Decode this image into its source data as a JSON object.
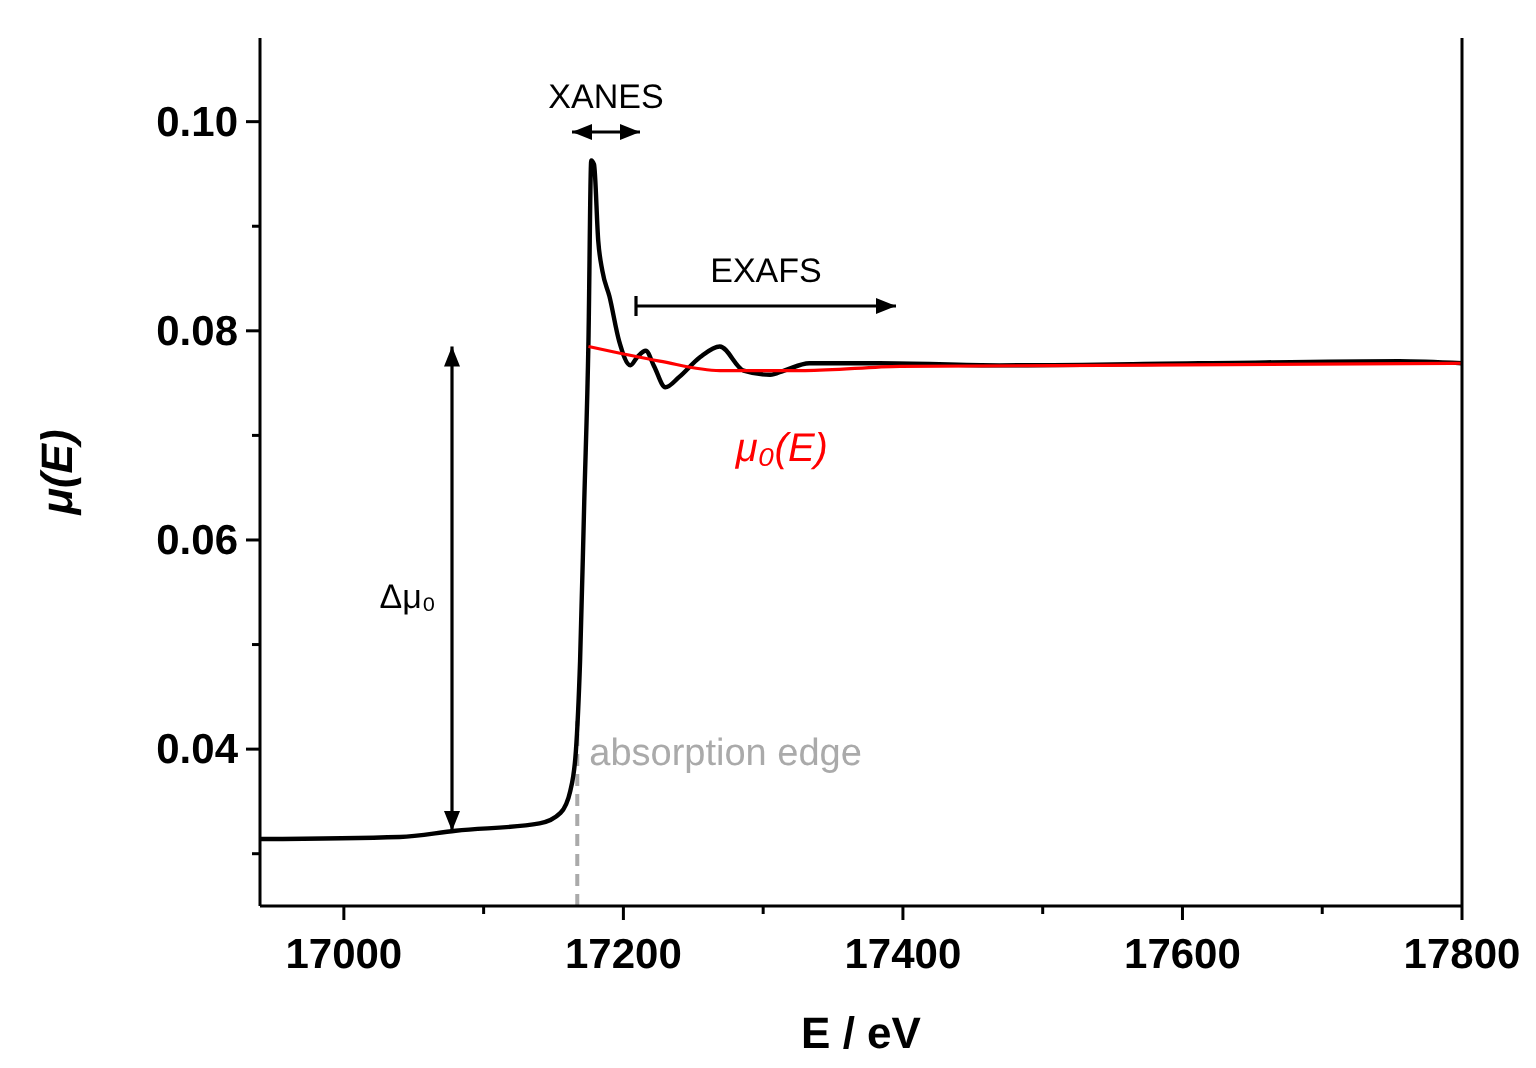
{
  "chart_data": {
    "type": "line",
    "xlabel": "E / eV",
    "ylabel": "μ(E)",
    "xlim": [
      16940,
      17800
    ],
    "ylim": [
      0.025,
      0.108
    ],
    "xticks": [
      {
        "value": 17000,
        "label": "17000"
      },
      {
        "value": 17100,
        "label": null
      },
      {
        "value": 17200,
        "label": "17200"
      },
      {
        "value": 17300,
        "label": null
      },
      {
        "value": 17400,
        "label": "17400"
      },
      {
        "value": 17500,
        "label": null
      },
      {
        "value": 17600,
        "label": "17600"
      },
      {
        "value": 17700,
        "label": null
      },
      {
        "value": 17800,
        "label": "17800"
      }
    ],
    "yticks": [
      {
        "value": 0.03,
        "label": null
      },
      {
        "value": 0.04,
        "label": "0.04"
      },
      {
        "value": 0.05,
        "label": null
      },
      {
        "value": 0.06,
        "label": "0.06"
      },
      {
        "value": 0.07,
        "label": null
      },
      {
        "value": 0.08,
        "label": "0.08"
      },
      {
        "value": 0.09,
        "label": null
      },
      {
        "value": 0.1,
        "label": "0.10"
      }
    ],
    "grid": false,
    "marker": "none",
    "line_style": "solid",
    "series": [
      {
        "color": "#000000",
        "x": [
          16940,
          17040,
          17080,
          17140,
          17155,
          17162,
          17166,
          17169,
          17172,
          17175,
          17177,
          17179,
          17182,
          17185,
          17190,
          17197,
          17205,
          17210,
          17216,
          17222,
          17230,
          17240,
          17255,
          17269,
          17286,
          17305,
          17315,
          17333,
          17383,
          17469,
          17612,
          17755,
          17800
        ],
        "values": [
          0.0314,
          0.0316,
          0.0322,
          0.0329,
          0.0339,
          0.036,
          0.0398,
          0.0484,
          0.0637,
          0.079,
          0.0963,
          0.0959,
          0.0886,
          0.0857,
          0.0833,
          0.079,
          0.0767,
          0.0775,
          0.0781,
          0.0766,
          0.0746,
          0.0756,
          0.0775,
          0.0785,
          0.0762,
          0.0758,
          0.0762,
          0.0769,
          0.0769,
          0.0767,
          0.0769,
          0.0771,
          0.0769
        ]
      },
      {
        "name": "μ₀(E)",
        "color": "#ff0000",
        "x": [
          17175,
          17226,
          17269,
          17330,
          17398,
          17541,
          17800
        ],
        "values": [
          0.0785,
          0.0771,
          0.0762,
          0.0762,
          0.0766,
          0.0767,
          0.0769
        ]
      }
    ],
    "ref_lines": [
      {
        "axis": "x",
        "value": 17167,
        "label": "absorption edge",
        "color": "#aaaaaa",
        "line_style": "dashed"
      }
    ],
    "annotations": [
      "XANES",
      "EXAFS",
      "Δμ₀"
    ]
  }
}
